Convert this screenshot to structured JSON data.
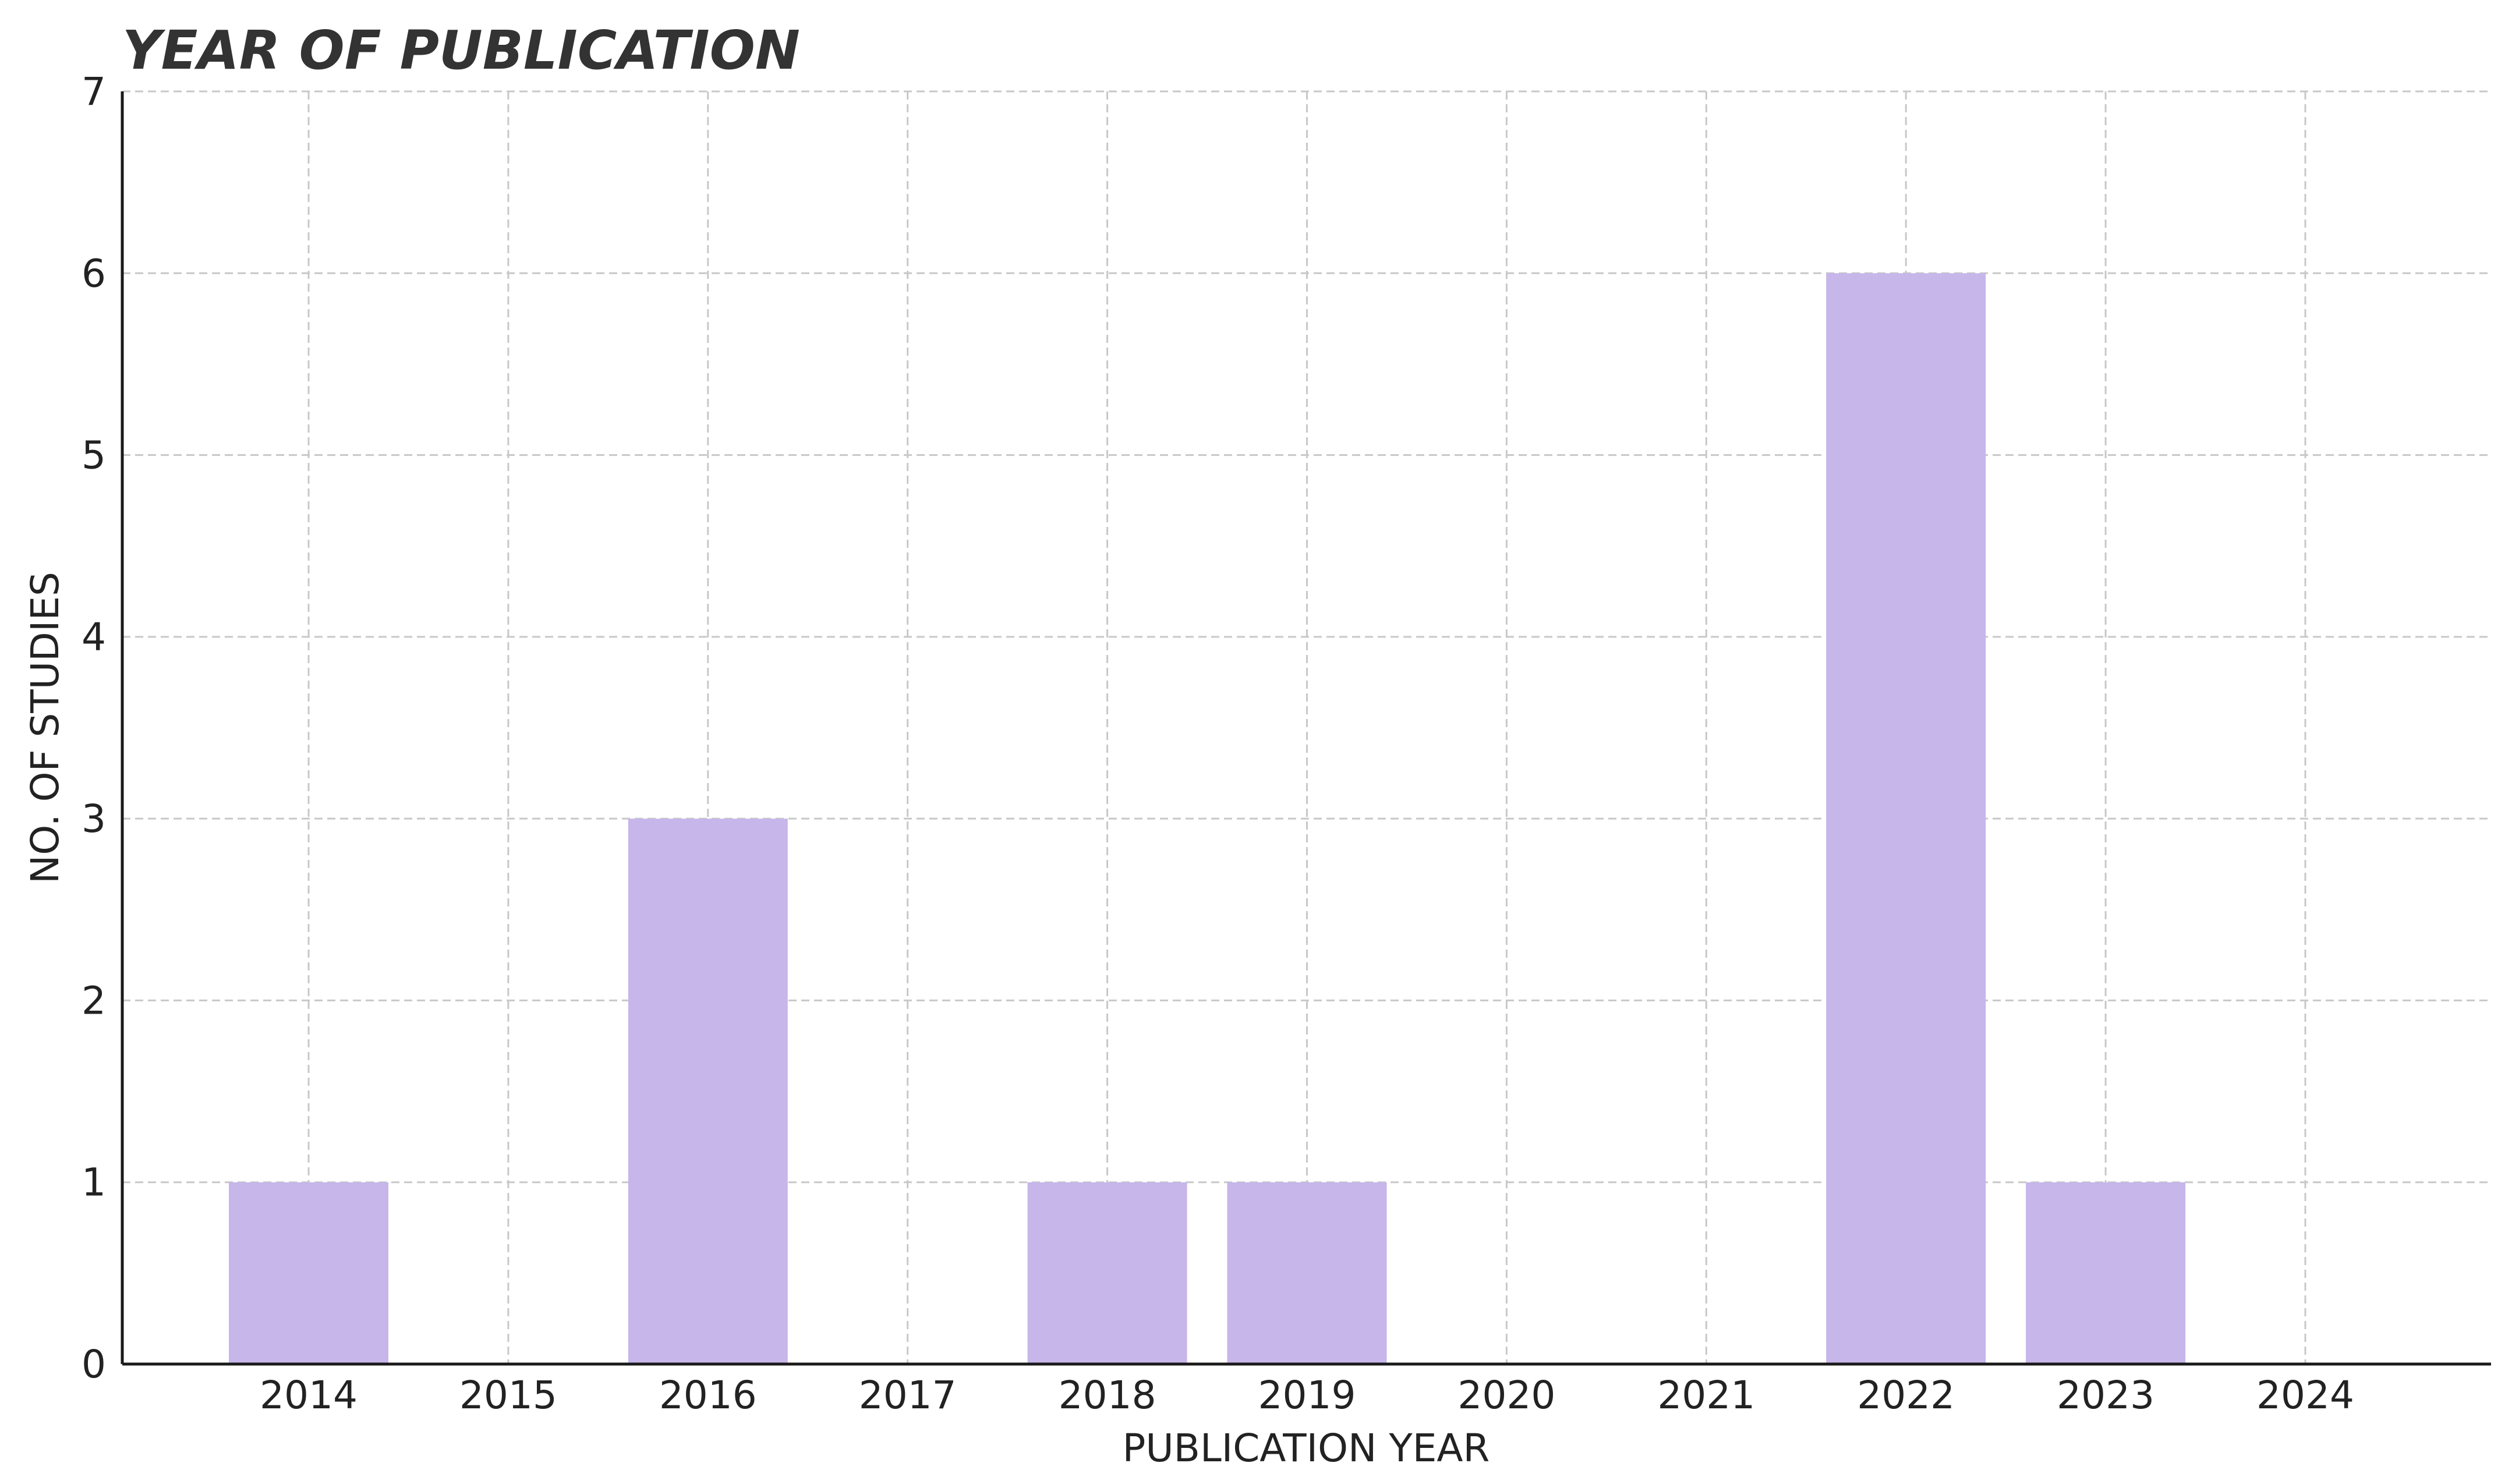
{
  "chart_data": {
    "type": "bar",
    "title": "YEAR OF PUBLICATION",
    "xlabel": "PUBLICATION YEAR",
    "ylabel": "NO. OF STUDIES",
    "categories": [
      "2014",
      "2015",
      "2016",
      "2017",
      "2018",
      "2019",
      "2020",
      "2021",
      "2022",
      "2023",
      "2024"
    ],
    "values": [
      1,
      0,
      3,
      0,
      1,
      1,
      0,
      0,
      6,
      1,
      0
    ],
    "ylim": [
      0,
      7
    ],
    "yticks": [
      "0",
      "1",
      "2",
      "3",
      "4",
      "5",
      "6",
      "7"
    ],
    "grid": true,
    "bar_color": "#c6b6ea"
  }
}
